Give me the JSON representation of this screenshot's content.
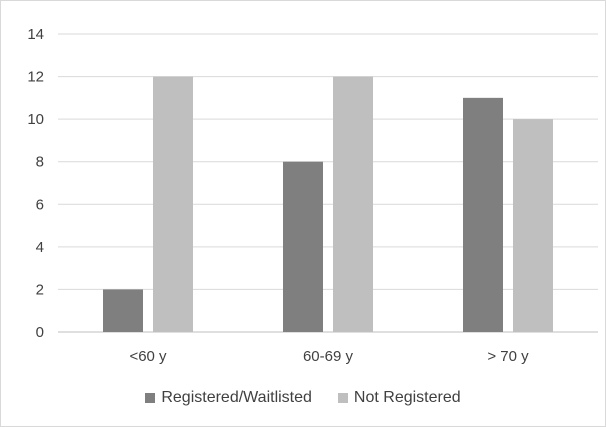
{
  "chart_data": {
    "type": "bar",
    "title": "",
    "xlabel": "",
    "ylabel": "",
    "categories": [
      "<60 y",
      "60-69 y",
      "> 70 y"
    ],
    "series": [
      {
        "name": "Registered/Waitlisted",
        "values": [
          2,
          8,
          11
        ],
        "color": "#7f7f7f"
      },
      {
        "name": "Not Registered",
        "values": [
          12,
          12,
          10
        ],
        "color": "#bfbfbf"
      }
    ],
    "ylim": [
      0,
      14
    ],
    "yticks": [
      0,
      2,
      4,
      6,
      8,
      10,
      12,
      14
    ],
    "grid": true,
    "legend_position": "bottom"
  }
}
